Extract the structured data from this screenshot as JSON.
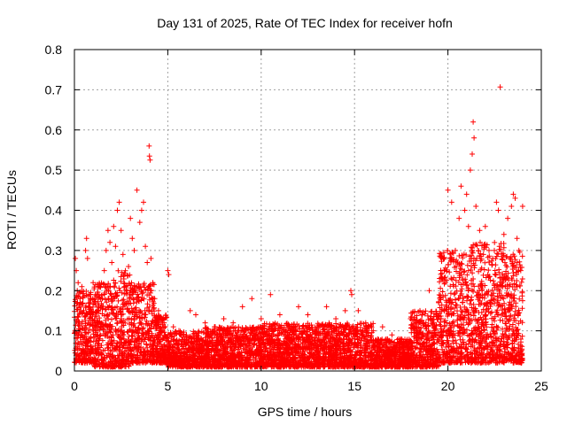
{
  "chart_data": {
    "type": "scatter",
    "title": "Day 131 of 2025, Rate Of TEC Index for receiver hofn",
    "xlabel": "GPS time / hours",
    "ylabel": "ROTI / TECUs",
    "xlim": [
      0,
      25
    ],
    "ylim": [
      0,
      0.8
    ],
    "xticks": [
      0,
      5,
      10,
      15,
      20,
      25
    ],
    "xtick_labels": [
      "0",
      "5",
      "10",
      "15",
      "20",
      "25"
    ],
    "yticks": [
      0,
      0.1,
      0.2,
      0.3,
      0.4,
      0.5,
      0.6,
      0.7,
      0.8
    ],
    "ytick_labels": [
      "0",
      "0.1",
      "0.2",
      "0.3",
      "0.4",
      "0.5",
      "0.6",
      "0.7",
      "0.8"
    ],
    "grid": true,
    "marker": "+",
    "color": "#ff0000",
    "series": [
      {
        "name": "ROTI",
        "points": [
          [
            0.05,
            0.28
          ],
          [
            0.1,
            0.25
          ],
          [
            0.15,
            0.2
          ],
          [
            0.2,
            0.22
          ],
          [
            0.3,
            0.18
          ],
          [
            0.4,
            0.21
          ],
          [
            0.5,
            0.15
          ],
          [
            0.6,
            0.3
          ],
          [
            0.65,
            0.33
          ],
          [
            0.7,
            0.28
          ],
          [
            0.8,
            0.19
          ],
          [
            0.9,
            0.14
          ],
          [
            1.0,
            0.22
          ],
          [
            1.1,
            0.12
          ],
          [
            1.2,
            0.19
          ],
          [
            1.3,
            0.16
          ],
          [
            1.4,
            0.21
          ],
          [
            1.5,
            0.18
          ],
          [
            1.6,
            0.25
          ],
          [
            1.7,
            0.3
          ],
          [
            1.8,
            0.35
          ],
          [
            1.9,
            0.32
          ],
          [
            2.0,
            0.27
          ],
          [
            2.1,
            0.36
          ],
          [
            2.2,
            0.31
          ],
          [
            2.3,
            0.4
          ],
          [
            2.4,
            0.42
          ],
          [
            2.5,
            0.35
          ],
          [
            2.6,
            0.29
          ],
          [
            2.7,
            0.24
          ],
          [
            2.8,
            0.2
          ],
          [
            2.9,
            0.26
          ],
          [
            3.0,
            0.38
          ],
          [
            3.1,
            0.33
          ],
          [
            3.2,
            0.3
          ],
          [
            3.35,
            0.45
          ],
          [
            3.5,
            0.37
          ],
          [
            3.6,
            0.4
          ],
          [
            3.7,
            0.42
          ],
          [
            3.8,
            0.31
          ],
          [
            3.9,
            0.27
          ],
          [
            4.0,
            0.56
          ],
          [
            4.02,
            0.535
          ],
          [
            4.05,
            0.525
          ],
          [
            4.1,
            0.28
          ],
          [
            4.2,
            0.22
          ],
          [
            4.3,
            0.18
          ],
          [
            4.5,
            0.15
          ],
          [
            4.8,
            0.12
          ],
          [
            5.0,
            0.25
          ],
          [
            5.05,
            0.24
          ],
          [
            5.3,
            0.11
          ],
          [
            5.6,
            0.1
          ],
          [
            6.0,
            0.09
          ],
          [
            6.2,
            0.15
          ],
          [
            6.5,
            0.14
          ],
          [
            7.0,
            0.12
          ],
          [
            7.5,
            0.11
          ],
          [
            8.0,
            0.13
          ],
          [
            8.5,
            0.12
          ],
          [
            9.0,
            0.16
          ],
          [
            9.5,
            0.18
          ],
          [
            10.0,
            0.13
          ],
          [
            10.5,
            0.19
          ],
          [
            11.0,
            0.14
          ],
          [
            11.5,
            0.11
          ],
          [
            12.0,
            0.16
          ],
          [
            12.5,
            0.14
          ],
          [
            13.0,
            0.11
          ],
          [
            13.5,
            0.16
          ],
          [
            14.0,
            0.13
          ],
          [
            14.5,
            0.15
          ],
          [
            14.8,
            0.2
          ],
          [
            14.85,
            0.19
          ],
          [
            15.2,
            0.15
          ],
          [
            15.6,
            0.12
          ],
          [
            16.0,
            0.1
          ],
          [
            16.5,
            0.11
          ],
          [
            17.0,
            0.09
          ],
          [
            17.5,
            0.08
          ],
          [
            18.0,
            0.13
          ],
          [
            18.5,
            0.15
          ],
          [
            19.0,
            0.2
          ],
          [
            19.5,
            0.17
          ],
          [
            19.8,
            0.25
          ],
          [
            20.0,
            0.45
          ],
          [
            20.2,
            0.42
          ],
          [
            20.4,
            0.3
          ],
          [
            20.6,
            0.38
          ],
          [
            20.7,
            0.46
          ],
          [
            20.9,
            0.4
          ],
          [
            21.0,
            0.44
          ],
          [
            21.1,
            0.36
          ],
          [
            21.2,
            0.5
          ],
          [
            21.3,
            0.54
          ],
          [
            21.35,
            0.62
          ],
          [
            21.4,
            0.58
          ],
          [
            21.5,
            0.41
          ],
          [
            21.7,
            0.35
          ],
          [
            21.9,
            0.29
          ],
          [
            22.0,
            0.36
          ],
          [
            22.2,
            0.3
          ],
          [
            22.4,
            0.28
          ],
          [
            22.6,
            0.42
          ],
          [
            22.7,
            0.4
          ],
          [
            22.8,
            0.707
          ],
          [
            23.0,
            0.34
          ],
          [
            23.2,
            0.38
          ],
          [
            23.4,
            0.41
          ],
          [
            23.5,
            0.44
          ],
          [
            23.6,
            0.43
          ],
          [
            23.7,
            0.33
          ],
          [
            23.8,
            0.3
          ],
          [
            23.9,
            0.25
          ],
          [
            24.0,
            0.41
          ]
        ],
        "background_envelope": {
          "description_hours": "dense cloud of ROTI samples; per-interval approximate [x_start, x_end, low, high]",
          "bands": [
            [
              0.0,
              1.0,
              0.02,
              0.2
            ],
            [
              1.0,
              2.0,
              0.01,
              0.22
            ],
            [
              2.0,
              3.0,
              0.01,
              0.25
            ],
            [
              3.0,
              4.3,
              0.02,
              0.22
            ],
            [
              4.3,
              5.0,
              0.02,
              0.14
            ],
            [
              5.0,
              7.0,
              0.01,
              0.1
            ],
            [
              7.0,
              10.0,
              0.01,
              0.11
            ],
            [
              10.0,
              13.0,
              0.01,
              0.12
            ],
            [
              13.0,
              16.0,
              0.01,
              0.12
            ],
            [
              16.0,
              18.0,
              0.01,
              0.08
            ],
            [
              18.0,
              19.5,
              0.01,
              0.15
            ],
            [
              19.5,
              21.0,
              0.02,
              0.3
            ],
            [
              21.0,
              23.0,
              0.02,
              0.32
            ],
            [
              23.0,
              24.0,
              0.02,
              0.3
            ]
          ]
        }
      }
    ]
  }
}
